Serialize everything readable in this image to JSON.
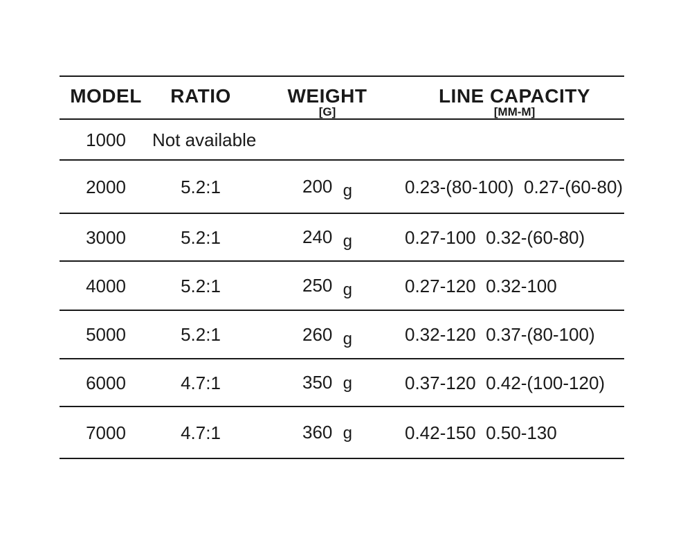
{
  "page": {
    "background": "#ffffff",
    "text_color": "#1a1a1a",
    "rule_color": "#191919"
  },
  "table": {
    "header": {
      "columns": [
        {
          "label": "MODEL",
          "sublabel": ""
        },
        {
          "label": "RATIO",
          "sublabel": ""
        },
        {
          "label": "WEIGHT",
          "sublabel": "[G]"
        },
        {
          "label": "LINE CAPACITY",
          "sublabel": "[MM-M]"
        }
      ]
    },
    "rows": [
      {
        "model": "1000",
        "ratio": "Not available",
        "weight": "",
        "weight_unit": "",
        "line_capacity": ""
      },
      {
        "model": "2000",
        "ratio": "5.2:1",
        "weight": "200",
        "weight_unit": "g",
        "line_capacity": "0.23-(80-100)  0.27-(60-80)"
      },
      {
        "model": "3000",
        "ratio": "5.2:1",
        "weight": "240",
        "weight_unit": "g",
        "line_capacity": "0.27-100  0.32-(60-80)"
      },
      {
        "model": "4000",
        "ratio": "5.2:1",
        "weight": "250",
        "weight_unit": "g",
        "line_capacity": "0.27-120  0.32-100"
      },
      {
        "model": "5000",
        "ratio": "5.2:1",
        "weight": "260",
        "weight_unit": "g",
        "line_capacity": "0.32-120  0.37-(80-100)"
      },
      {
        "model": "6000",
        "ratio": "4.7:1",
        "weight": "350",
        "weight_unit": "g",
        "line_capacity": "0.37-120  0.42-(100-120)"
      },
      {
        "model": "7000",
        "ratio": "4.7:1",
        "weight": "360",
        "weight_unit": "g",
        "line_capacity": "0.42-150  0.50-130"
      }
    ]
  }
}
